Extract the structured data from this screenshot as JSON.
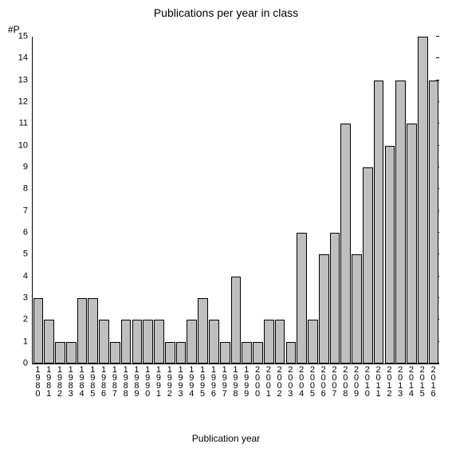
{
  "chart": {
    "type": "bar",
    "title": "Publications per year in class",
    "title_fontsize": 14,
    "ylabel": "#P",
    "xlabel": "Publication year",
    "label_fontsize": 12,
    "categories": [
      "1980",
      "1981",
      "1982",
      "1983",
      "1984",
      "1985",
      "1986",
      "1987",
      "1988",
      "1989",
      "1990",
      "1991",
      "1992",
      "1993",
      "1994",
      "1995",
      "1996",
      "1997",
      "1998",
      "1999",
      "2000",
      "2001",
      "2002",
      "2003",
      "2004",
      "2005",
      "2006",
      "2007",
      "2008",
      "2009",
      "2010",
      "2011",
      "2012",
      "2013",
      "2014",
      "2015",
      "2016"
    ],
    "values": [
      3,
      2,
      1,
      1,
      3,
      3,
      2,
      1,
      2,
      2,
      2,
      2,
      1,
      1,
      2,
      3,
      2,
      1,
      4,
      1,
      1,
      2,
      2,
      1,
      6,
      2,
      5,
      6,
      11,
      5,
      9,
      13,
      10,
      13,
      11,
      15,
      13
    ],
    "bar_color": "#bfbfbf",
    "bar_border_color": "#000000",
    "background_color": "#ffffff",
    "axis_color": "#000000",
    "text_color": "#000000",
    "ylim": [
      0,
      15
    ],
    "ytick_step": 1,
    "bar_width": 0.92,
    "tick_fontsize": 11
  }
}
